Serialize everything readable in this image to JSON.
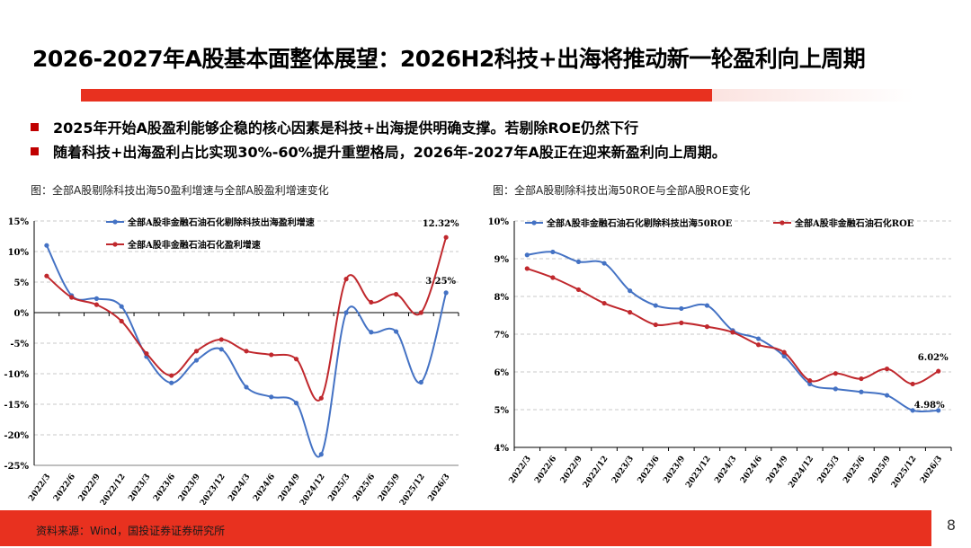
{
  "title": "2026-2027年A股基本面整体展望：2026H2科技+出海将推动新一轮盈利向上周期",
  "bullets": [
    "2025年开始A股盈利能够企稳的核心因素是科技+出海提供明确支撑。若剔除ROE仍然下行",
    "随着科技+出海盈利占比实现30%-60%提升重塑格局，2026年-2027年A股正在迎来新盈利向上周期。"
  ],
  "colors": {
    "accent": "#e8311f",
    "blue": "#4472c4",
    "red": "#c0282d"
  },
  "footer": {
    "source": "资料来源：Wind，国投证券证券研究所",
    "page": "8"
  },
  "chart_data": [
    {
      "type": "line",
      "caption": "图：全部A股剔除科技出海50盈利增速与全部A股盈利增速变化",
      "x": [
        "2022/3",
        "2022/6",
        "2022/9",
        "2022/12",
        "2023/3",
        "2023/6",
        "2023/9",
        "2023/12",
        "2024/3",
        "2024/6",
        "2024/9",
        "2024/12",
        "2025/3",
        "2025/6",
        "2025/9",
        "2025/12",
        "2026/3"
      ],
      "ylim": [
        -25,
        15
      ],
      "yticks": [
        -25,
        -20,
        -15,
        -10,
        -5,
        0,
        5,
        10,
        15
      ],
      "ytick_labels": [
        "-25%",
        "-20%",
        "-15%",
        "-10%",
        "-5%",
        "0%",
        "5%",
        "10%",
        "15%"
      ],
      "grid": true,
      "legend": "top-left",
      "series": [
        {
          "name": "全部A股非金融石油石化剔除科技出海盈利增速",
          "color": "#4472c4",
          "values": [
            11.0,
            2.8,
            2.3,
            1.0,
            -7.2,
            -11.5,
            -7.8,
            -6.0,
            -12.2,
            -13.8,
            -14.8,
            -23.2,
            0.0,
            -3.2,
            -3.1,
            -11.4,
            3.25
          ],
          "end_label": "3.25%"
        },
        {
          "name": "全部A股非金融石油石化盈利增速",
          "color": "#c0282d",
          "values": [
            6.0,
            2.5,
            1.3,
            -1.4,
            -6.7,
            -10.3,
            -6.3,
            -4.4,
            -6.3,
            -6.9,
            -7.6,
            -14.0,
            5.5,
            1.7,
            3.0,
            0.0,
            12.32
          ],
          "end_label": "12.32%"
        }
      ]
    },
    {
      "type": "line",
      "caption": "图：全部A股剔除科技出海50ROE与全部A股ROE变化",
      "x": [
        "2022/3",
        "2022/6",
        "2022/9",
        "2022/12",
        "2023/3",
        "2023/6",
        "2023/9",
        "2023/12",
        "2024/3",
        "2024/6",
        "2024/9",
        "2024/12",
        "2025/3",
        "2025/6",
        "2025/9",
        "2025/12",
        "2026/3"
      ],
      "ylim": [
        4,
        10
      ],
      "yticks": [
        4,
        5,
        6,
        7,
        8,
        9,
        10
      ],
      "ytick_labels": [
        "4%",
        "5%",
        "6%",
        "7%",
        "8%",
        "9%",
        "10%"
      ],
      "grid": true,
      "legend": "top",
      "series": [
        {
          "name": "全部A股非金融石油石化剔除科技出海50ROE",
          "color": "#4472c4",
          "values": [
            9.1,
            9.18,
            8.92,
            8.88,
            8.15,
            7.76,
            7.68,
            7.76,
            7.1,
            6.88,
            6.42,
            5.68,
            5.55,
            5.47,
            5.38,
            4.98,
            4.98
          ],
          "end_label": "4.98%"
        },
        {
          "name": "全部A股非金融石油石化ROE",
          "color": "#c0282d",
          "values": [
            8.74,
            8.5,
            8.18,
            7.82,
            7.58,
            7.25,
            7.3,
            7.2,
            7.05,
            6.72,
            6.52,
            5.77,
            5.96,
            5.82,
            6.08,
            5.68,
            6.02
          ],
          "end_label": "6.02%"
        }
      ]
    }
  ]
}
